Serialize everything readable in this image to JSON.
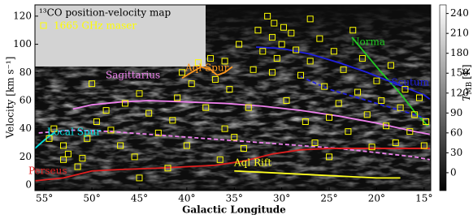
{
  "chart_data": {
    "type": "scatter",
    "x_label": "Galactic Longitude",
    "y_label": "Velocity [km s⁻¹]",
    "colorbar_label": {
      "symbol": "T",
      "subscript": "MB",
      "unit": "[K]"
    },
    "background_label": "¹³CO position-velocity map",
    "xlim": [
      56,
      14.3
    ],
    "ylim": [
      -4,
      128
    ],
    "xticks": [
      {
        "value": 55,
        "label": "55°"
      },
      {
        "value": 50,
        "label": "50°"
      },
      {
        "value": 45,
        "label": "45°"
      },
      {
        "value": 40,
        "label": "40°"
      },
      {
        "value": 35,
        "label": "35°"
      },
      {
        "value": 30,
        "label": "30°"
      },
      {
        "value": 25,
        "label": "25°"
      },
      {
        "value": 20,
        "label": "20°"
      },
      {
        "value": 15,
        "label": "15°"
      }
    ],
    "yticks": [
      0,
      20,
      40,
      60,
      80,
      100,
      120
    ],
    "colorbar_lim": [
      -27,
      253
    ],
    "colorbar_ticks": [
      0,
      30,
      60,
      90,
      120,
      150,
      180,
      210,
      240
    ],
    "arms": [
      {
        "name": "Norma",
        "color": "#22cc22",
        "x": [
          22.6,
          21,
          19.5,
          17.5,
          16,
          14.6
        ],
        "values": [
          105,
          92,
          80,
          65,
          52,
          42
        ]
      },
      {
        "name": "Scutum",
        "color": "#2020e0",
        "x": [
          32.7,
          30,
          27,
          24,
          21,
          18,
          15,
          14.4
        ],
        "values": [
          98,
          97,
          93,
          87,
          80,
          72,
          64,
          61
        ],
        "far_x": [
          28,
          25,
          22,
          19,
          16,
          14.4
        ],
        "far_values": [
          77,
          68,
          62,
          56,
          50,
          46
        ]
      },
      {
        "name": "Aql Spur",
        "color": "#ff9a20",
        "x": [
          40.5,
          39.5,
          38.5,
          37.5,
          36.8,
          36,
          35.2
        ],
        "values": [
          76,
          80,
          84,
          82,
          78,
          80,
          84
        ]
      },
      {
        "name": "Sagittarius",
        "color": "#ee82ee",
        "x": [
          52,
          50,
          47,
          44,
          40,
          36,
          32,
          28,
          24,
          20,
          16,
          14.4
        ],
        "values": [
          54,
          57,
          59,
          60,
          59,
          58,
          56,
          53,
          49,
          44,
          38,
          36
        ],
        "far_x": [
          55.6,
          52,
          48,
          44,
          40,
          36,
          32,
          28,
          24,
          20,
          16,
          14.4
        ],
        "far_values": [
          37,
          39,
          38,
          36,
          34,
          32,
          30,
          28,
          26,
          23,
          20,
          18
        ]
      },
      {
        "name": "Local Spur",
        "color": "#00e0e0",
        "x": [
          56,
          55,
          54
        ],
        "values": [
          26,
          32,
          37
        ]
      },
      {
        "name": "Perseus",
        "color": "#e02020",
        "x": [
          56,
          53,
          50,
          47,
          43,
          40,
          37,
          34,
          31,
          28,
          25,
          20,
          15,
          14.4
        ],
        "values": [
          3,
          5,
          10,
          11,
          12,
          13,
          14,
          17,
          22,
          25,
          26,
          26,
          26,
          26
        ]
      },
      {
        "name": "Aql Rift",
        "color": "#ffff20",
        "x": [
          35,
          32,
          29,
          26,
          23,
          20,
          17.5
        ],
        "values": [
          10,
          9,
          8,
          7,
          6,
          5,
          5
        ]
      }
    ],
    "series": [
      {
        "name": "1665 GHz maser",
        "color": "#ffff00",
        "x": [
          54.5,
          54,
          53,
          53,
          52.5,
          51.5,
          51,
          50.5,
          50,
          49.5,
          48.5,
          48,
          47,
          46.5,
          45.5,
          45,
          44,
          43,
          42,
          41.5,
          41,
          40,
          39.5,
          38.8,
          38,
          37.5,
          37,
          36.5,
          36,
          35.5,
          35,
          34.5,
          34,
          33.5,
          33,
          32.5,
          32,
          31.5,
          31,
          30.8,
          30.5,
          30,
          29.8,
          29.5,
          29,
          28.5,
          28,
          27.5,
          27,
          26.5,
          26,
          25.5,
          25,
          24.5,
          24,
          23.5,
          23,
          22.5,
          22,
          21.5,
          21,
          20.5,
          20,
          19.5,
          19,
          18.5,
          18,
          17.5,
          17,
          16.5,
          16,
          15.5,
          15,
          14.8,
          40.5,
          36,
          27,
          31,
          25,
          45
        ],
        "values": [
          33,
          40,
          28,
          18,
          22,
          13,
          19,
          33,
          72,
          45,
          53,
          39,
          28,
          58,
          20,
          65,
          51,
          37,
          12,
          46,
          62,
          28,
          72,
          87,
          55,
          90,
          75,
          18,
          40,
          68,
          34,
          100,
          26,
          55,
          82,
          110,
          95,
          120,
          105,
          115,
          90,
          100,
          112,
          60,
          108,
          96,
          78,
          45,
          88,
          30,
          104,
          70,
          48,
          95,
          58,
          82,
          38,
          110,
          66,
          90,
          50,
          27,
          74,
          60,
          42,
          85,
          30,
          55,
          68,
          38,
          50,
          62,
          28,
          45,
          80,
          88,
          118,
          80,
          20,
          5
        ]
      }
    ]
  }
}
